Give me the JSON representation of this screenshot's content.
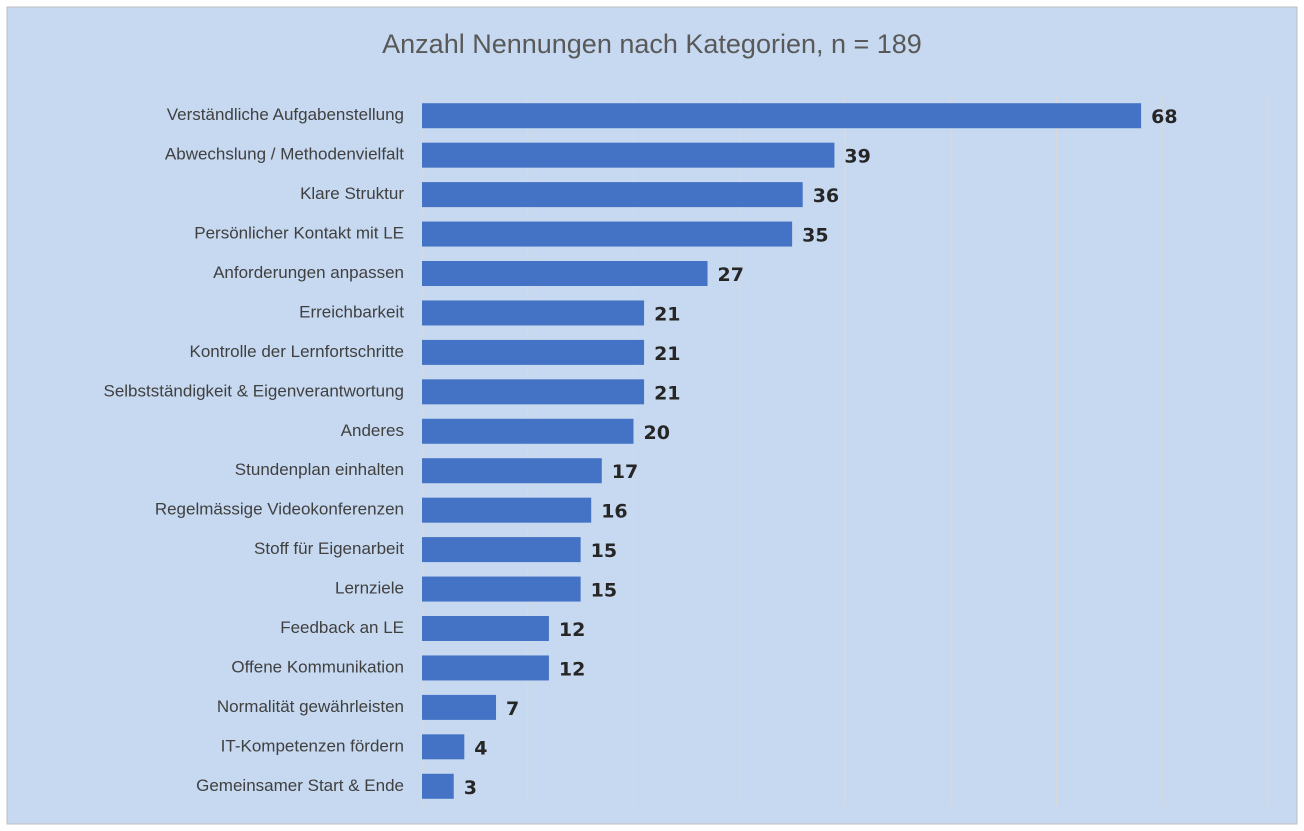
{
  "chart_data": {
    "type": "bar",
    "orientation": "horizontal",
    "title": "Anzahl Nennungen nach Kategorien, n = 189",
    "categories": [
      "Verständliche Aufgabenstellung",
      "Abwechslung / Methodenvielfalt",
      "Klare Struktur",
      "Persönlicher Kontakt mit LE",
      "Anforderungen anpassen",
      "Erreichbarkeit",
      "Kontrolle der Lernfortschritte",
      "Selbstständigkeit & Eigenverantwortung",
      "Anderes",
      "Stundenplan einhalten",
      "Regelmässige Videokonferenzen",
      "Stoff für Eigenarbeit",
      "Lernziele",
      "Feedback an LE",
      "Offene Kommunikation",
      "Normalität gewährleisten",
      "IT-Kompetenzen fördern",
      "Gemeinsamer Start & Ende"
    ],
    "values": [
      68,
      39,
      36,
      35,
      27,
      21,
      21,
      21,
      20,
      17,
      16,
      15,
      15,
      12,
      12,
      7,
      4,
      3
    ],
    "color": "#4472c4",
    "xlim": [
      0,
      80
    ],
    "xticks": [
      0,
      10,
      20,
      30,
      40,
      50,
      60,
      70,
      80
    ],
    "grid": true
  }
}
